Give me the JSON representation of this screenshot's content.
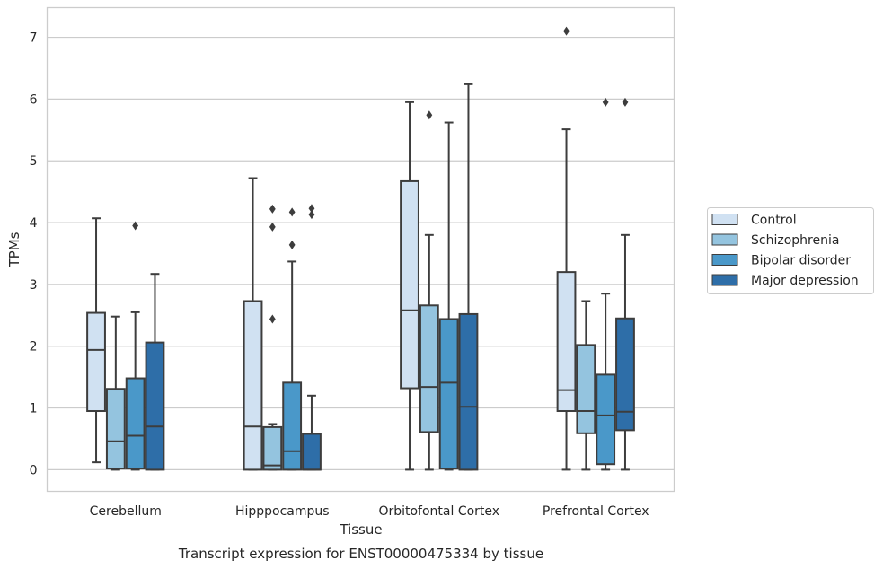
{
  "caption": "Transcript expression for ENST00000475334 by tissue",
  "chart_data": {
    "type": "boxplot",
    "title": "",
    "xlabel": "Tissue",
    "ylabel": "TPMs",
    "ylim": [
      -0.35,
      7.48
    ],
    "yticks": [
      0,
      1,
      2,
      3,
      4,
      5,
      6,
      7
    ],
    "grid": "horizontal",
    "legend_position": "right",
    "categories": [
      "Cerebellum",
      "Hipppocampus",
      "Orbitofontal Cortex",
      "Prefrontal Cortex"
    ],
    "series": [
      {
        "name": "Control",
        "color": "#d0e1f2",
        "boxes": [
          {
            "whislo": 0.12,
            "q1": 0.95,
            "med": 1.94,
            "q3": 2.54,
            "whishi": 4.07,
            "fliers": []
          },
          {
            "whislo": 0.0,
            "q1": 0.0,
            "med": 0.7,
            "q3": 2.73,
            "whishi": 4.72,
            "fliers": []
          },
          {
            "whislo": 0.0,
            "q1": 1.32,
            "med": 2.58,
            "q3": 4.67,
            "whishi": 5.95,
            "fliers": []
          },
          {
            "whislo": 0.0,
            "q1": 0.95,
            "med": 1.29,
            "q3": 3.2,
            "whishi": 5.51,
            "fliers": [
              7.1
            ]
          }
        ]
      },
      {
        "name": "Schizophrenia",
        "color": "#94c4df",
        "boxes": [
          {
            "whislo": 0.0,
            "q1": 0.02,
            "med": 0.46,
            "q3": 1.31,
            "whishi": 2.48,
            "fliers": []
          },
          {
            "whislo": 0.0,
            "q1": 0.0,
            "med": 0.07,
            "q3": 0.69,
            "whishi": 0.74,
            "fliers": [
              2.44,
              3.93,
              4.22
            ]
          },
          {
            "whislo": 0.0,
            "q1": 0.61,
            "med": 1.34,
            "q3": 2.66,
            "whishi": 3.8,
            "fliers": [
              5.74
            ]
          },
          {
            "whislo": 0.0,
            "q1": 0.59,
            "med": 0.95,
            "q3": 2.02,
            "whishi": 2.73,
            "fliers": []
          }
        ]
      },
      {
        "name": "Bipolar disorder",
        "color": "#4a98c9",
        "boxes": [
          {
            "whislo": 0.0,
            "q1": 0.02,
            "med": 0.55,
            "q3": 1.48,
            "whishi": 2.55,
            "fliers": [
              3.95
            ]
          },
          {
            "whislo": 0.0,
            "q1": 0.0,
            "med": 0.3,
            "q3": 1.41,
            "whishi": 3.37,
            "fliers": [
              3.64,
              4.17
            ]
          },
          {
            "whislo": 0.0,
            "q1": 0.02,
            "med": 1.41,
            "q3": 2.44,
            "whishi": 5.62,
            "fliers": []
          },
          {
            "whislo": 0.0,
            "q1": 0.09,
            "med": 0.88,
            "q3": 1.54,
            "whishi": 2.85,
            "fliers": [
              5.95
            ]
          }
        ]
      },
      {
        "name": "Major depression",
        "color": "#2e6ea8",
        "boxes": [
          {
            "whislo": 0.0,
            "q1": 0.0,
            "med": 0.7,
            "q3": 2.06,
            "whishi": 3.17,
            "fliers": []
          },
          {
            "whislo": 0.0,
            "q1": 0.0,
            "med": 0.0,
            "q3": 0.58,
            "whishi": 1.2,
            "fliers": [
              4.13,
              4.23
            ]
          },
          {
            "whislo": 0.0,
            "q1": 0.0,
            "med": 1.02,
            "q3": 2.52,
            "whishi": 6.24,
            "fliers": []
          },
          {
            "whislo": 0.0,
            "q1": 0.64,
            "med": 0.94,
            "q3": 2.45,
            "whishi": 3.8,
            "fliers": [
              5.95
            ]
          }
        ]
      }
    ]
  }
}
